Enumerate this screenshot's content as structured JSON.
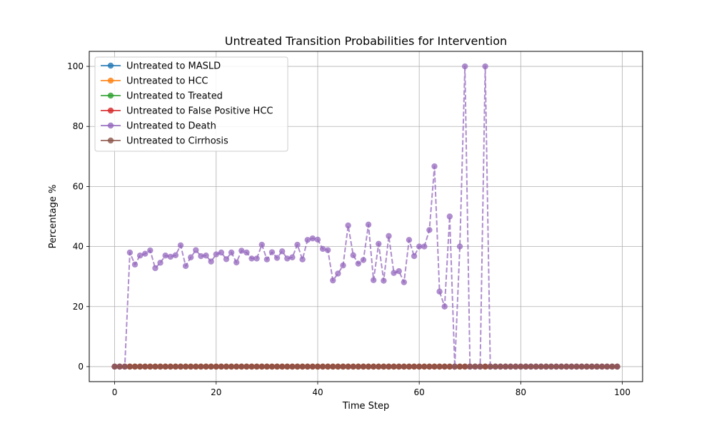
{
  "chart_data": {
    "type": "line",
    "title": "Untreated Transition Probabilities for Intervention",
    "xlabel": "Time Step",
    "ylabel": "Percentage %",
    "xlim": [
      -5,
      104
    ],
    "ylim": [
      -5,
      105
    ],
    "xticks": [
      "0",
      "20",
      "40",
      "60",
      "80",
      "100"
    ],
    "yticks": [
      "0",
      "20",
      "40",
      "60",
      "80",
      "100"
    ],
    "grid": true,
    "legend_position": "upper-left",
    "series": [
      {
        "name": "Untreated to MASLD",
        "color": "#1f77b4",
        "values": [
          0,
          0,
          0,
          0,
          0,
          0,
          0,
          0,
          0,
          0,
          0,
          0,
          0,
          0,
          0,
          0,
          0,
          0,
          0,
          0,
          0,
          0,
          0,
          0,
          0,
          0,
          0,
          0,
          0,
          0,
          0,
          0,
          0,
          0,
          0,
          0,
          0,
          0,
          0,
          0,
          0,
          0,
          0,
          0,
          0,
          0,
          0,
          0,
          0,
          0,
          0,
          0,
          0,
          0,
          0,
          0,
          0,
          0,
          0,
          0,
          0,
          0,
          0,
          0,
          0,
          0,
          0,
          0,
          0,
          0,
          0,
          0,
          0,
          0,
          0,
          0,
          0,
          0,
          0,
          0,
          0,
          0,
          0,
          0,
          0,
          0,
          0,
          0,
          0,
          0,
          0,
          0,
          0,
          0,
          0,
          0,
          0,
          0,
          0,
          0
        ]
      },
      {
        "name": "Untreated to HCC",
        "color": "#ff7f0e",
        "values": [
          0,
          0,
          0,
          0,
          0,
          0,
          0,
          0,
          0,
          0,
          0,
          0,
          0,
          0,
          0,
          0,
          0,
          0,
          0,
          0,
          0,
          0,
          0,
          0,
          0,
          0,
          0,
          0,
          0,
          0,
          0,
          0,
          0,
          0,
          0,
          0,
          0,
          0,
          0,
          0,
          0,
          0,
          0,
          0,
          0,
          0,
          0,
          0,
          0,
          0,
          0,
          0,
          0,
          0,
          0,
          0,
          0,
          0,
          0,
          0,
          0,
          0,
          0,
          0,
          0,
          0,
          0,
          0,
          0,
          0,
          0,
          0,
          0,
          0,
          0,
          0,
          0,
          0,
          0,
          0,
          0,
          0,
          0,
          0,
          0,
          0,
          0,
          0,
          0,
          0,
          0,
          0,
          0,
          0,
          0,
          0,
          0,
          0,
          0,
          0
        ]
      },
      {
        "name": "Untreated to Treated",
        "color": "#2ca02c",
        "values": [
          0,
          0,
          0,
          0,
          0,
          0,
          0,
          0,
          0,
          0,
          0,
          0,
          0,
          0,
          0,
          0,
          0,
          0,
          0,
          0,
          0,
          0,
          0,
          0,
          0,
          0,
          0,
          0,
          0,
          0,
          0,
          0,
          0,
          0,
          0,
          0,
          0,
          0,
          0,
          0,
          0,
          0,
          0,
          0,
          0,
          0,
          0,
          0,
          0,
          0,
          0,
          0,
          0,
          0,
          0,
          0,
          0,
          0,
          0,
          0,
          0,
          0,
          0,
          0,
          0,
          0,
          0,
          0,
          0,
          0,
          0,
          0,
          0,
          0,
          0,
          0,
          0,
          0,
          0,
          0,
          0,
          0,
          0,
          0,
          0,
          0,
          0,
          0,
          0,
          0,
          0,
          0,
          0,
          0,
          0,
          0,
          0,
          0,
          0,
          0
        ]
      },
      {
        "name": "Untreated to False Positive HCC",
        "color": "#d62728",
        "values": [
          0,
          0,
          0,
          0,
          0,
          0,
          0,
          0,
          0,
          0,
          0,
          0,
          0,
          0,
          0,
          0,
          0,
          0,
          0,
          0,
          0,
          0,
          0,
          0,
          0,
          0,
          0,
          0,
          0,
          0,
          0,
          0,
          0,
          0,
          0,
          0,
          0,
          0,
          0,
          0,
          0,
          0,
          0,
          0,
          0,
          0,
          0,
          0,
          0,
          0,
          0,
          0,
          0,
          0,
          0,
          0,
          0,
          0,
          0,
          0,
          0,
          0,
          0,
          0,
          0,
          0,
          0,
          0,
          0,
          0,
          0,
          0,
          0,
          0,
          0,
          0,
          0,
          0,
          0,
          0,
          0,
          0,
          0,
          0,
          0,
          0,
          0,
          0,
          0,
          0,
          0,
          0,
          0,
          0,
          0,
          0,
          0,
          0,
          0,
          0
        ]
      },
      {
        "name": "Untreated to Death",
        "color": "#9467bd",
        "dashed": true,
        "values": [
          0,
          0,
          0,
          38,
          34,
          37,
          37.6,
          38.7,
          32.8,
          34.6,
          37,
          36.6,
          37.1,
          40.4,
          33.5,
          36.4,
          38.8,
          36.8,
          37,
          35,
          37.4,
          38,
          35.8,
          38,
          34.7,
          38.6,
          38,
          36,
          36,
          40.6,
          35.7,
          38.1,
          36.2,
          38.4,
          36,
          36.4,
          40.6,
          35.7,
          42.2,
          42.7,
          42.3,
          39.2,
          38.8,
          28.7,
          31,
          33.7,
          47,
          37.1,
          34.3,
          35.5,
          47.3,
          28.8,
          40.9,
          28.6,
          43.5,
          31.2,
          31.8,
          28.1,
          42.2,
          36.8,
          40,
          40,
          45.5,
          66.7,
          25,
          20,
          50,
          0,
          40,
          100,
          0,
          0,
          0,
          100,
          0,
          0,
          0,
          0,
          0,
          0,
          0,
          0,
          0,
          0,
          0,
          0,
          0,
          0,
          0,
          0,
          0,
          0,
          0,
          0,
          0,
          0,
          0,
          0,
          0,
          0
        ]
      },
      {
        "name": "Untreated to Cirrhosis",
        "color": "#8c564b",
        "values": [
          0,
          0,
          0,
          0,
          0,
          0,
          0,
          0,
          0,
          0,
          0,
          0,
          0,
          0,
          0,
          0,
          0,
          0,
          0,
          0,
          0,
          0,
          0,
          0,
          0,
          0,
          0,
          0,
          0,
          0,
          0,
          0,
          0,
          0,
          0,
          0,
          0,
          0,
          0,
          0,
          0,
          0,
          0,
          0,
          0,
          0,
          0,
          0,
          0,
          0,
          0,
          0,
          0,
          0,
          0,
          0,
          0,
          0,
          0,
          0,
          0,
          0,
          0,
          0,
          0,
          0,
          0,
          0,
          0,
          0,
          0,
          0,
          0,
          0,
          0,
          0,
          0,
          0,
          0,
          0,
          0,
          0,
          0,
          0,
          0,
          0,
          0,
          0,
          0,
          0,
          0,
          0,
          0,
          0,
          0,
          0,
          0,
          0,
          0,
          0
        ]
      }
    ]
  }
}
